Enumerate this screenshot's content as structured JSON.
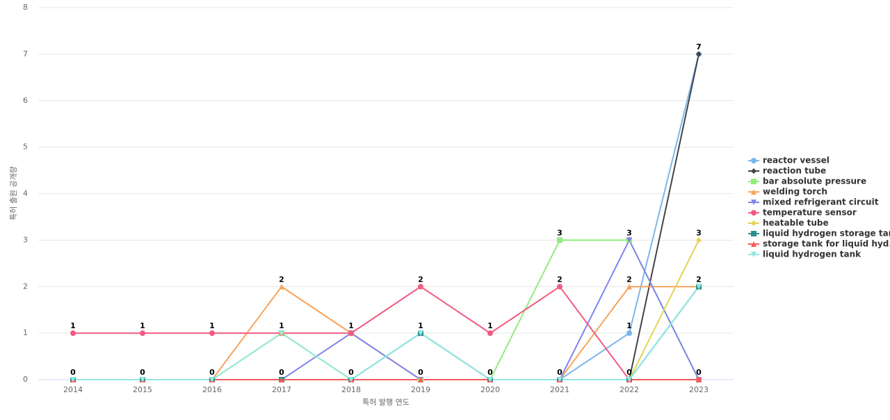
{
  "chart_data": {
    "type": "line",
    "y_label": "특허 출원 공개량",
    "x_label": "특허 발행 연도",
    "categories": [
      "2014",
      "2015",
      "2016",
      "2017",
      "2018",
      "2019",
      "2020",
      "2021",
      "2022",
      "2023"
    ],
    "ylim": [
      0,
      8
    ],
    "yticks": [
      0,
      1,
      2,
      3,
      4,
      5,
      6,
      7,
      8
    ],
    "grid": true,
    "legend": "right",
    "series": [
      {
        "name": "reactor vessel",
        "color": "#7cb5ec",
        "marker": "circle",
        "values": [
          0,
          0,
          0,
          0,
          0,
          0,
          0,
          0,
          1,
          7
        ]
      },
      {
        "name": "reaction tube",
        "color": "#434348",
        "marker": "diamond",
        "values": [
          0,
          0,
          0,
          0,
          0,
          0,
          0,
          0,
          0,
          7
        ]
      },
      {
        "name": "bar absolute pressure",
        "color": "#90ed7d",
        "marker": "square",
        "values": [
          0,
          0,
          0,
          1,
          0,
          0,
          0,
          3,
          3,
          0
        ]
      },
      {
        "name": "welding torch",
        "color": "#f7a35c",
        "marker": "triangle",
        "values": [
          0,
          0,
          0,
          2,
          1,
          0,
          0,
          0,
          2,
          2
        ]
      },
      {
        "name": "mixed refrigerant circuit",
        "color": "#8085e9",
        "marker": "triangle-down",
        "values": [
          0,
          0,
          0,
          0,
          1,
          0,
          0,
          0,
          3,
          0
        ]
      },
      {
        "name": "temperature sensor",
        "color": "#f15c80",
        "marker": "circle",
        "values": [
          1,
          1,
          1,
          1,
          1,
          2,
          1,
          2,
          0,
          0
        ]
      },
      {
        "name": "heatable tube",
        "color": "#e4d354",
        "marker": "diamond",
        "values": [
          0,
          0,
          0,
          1,
          0,
          0,
          0,
          0,
          0,
          3
        ]
      },
      {
        "name": "liquid hydrogen storage tank",
        "color": "#2b908f",
        "marker": "square",
        "values": [
          0,
          0,
          0,
          0,
          0,
          1,
          0,
          0,
          0,
          2
        ]
      },
      {
        "name": "storage tank for liquid hyd...",
        "color": "#f45b5b",
        "marker": "triangle",
        "values": [
          0,
          0,
          0,
          0,
          0,
          0,
          0,
          0,
          0,
          0
        ]
      },
      {
        "name": "liquid hydrogen tank",
        "color": "#91e8e1",
        "marker": "triangle-down",
        "values": [
          0,
          0,
          0,
          1,
          0,
          1,
          0,
          0,
          0,
          2
        ]
      }
    ]
  }
}
